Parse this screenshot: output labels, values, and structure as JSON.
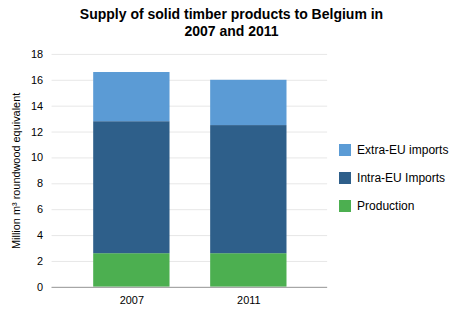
{
  "chart_data": {
    "type": "bar",
    "title": "Supply of solid timber products to Belgium in\n2007 and 2011",
    "ylabel": "Million m³ roundwood equivalent",
    "categories": [
      "2007",
      "2011"
    ],
    "series": [
      {
        "name": "Production",
        "color": "#4CAF50",
        "values": [
          2.6,
          2.6
        ]
      },
      {
        "name": "Intra-EU Imports",
        "color": "#2E5F8A",
        "values": [
          10.2,
          9.9
        ]
      },
      {
        "name": "Extra-EU imports",
        "color": "#5B9BD5",
        "values": [
          3.8,
          3.5
        ]
      }
    ],
    "stacked": true,
    "ylim": [
      0,
      18
    ],
    "yticks": [
      0,
      2,
      4,
      6,
      8,
      10,
      12,
      14,
      16,
      18
    ],
    "grid": true,
    "legend": "right"
  }
}
